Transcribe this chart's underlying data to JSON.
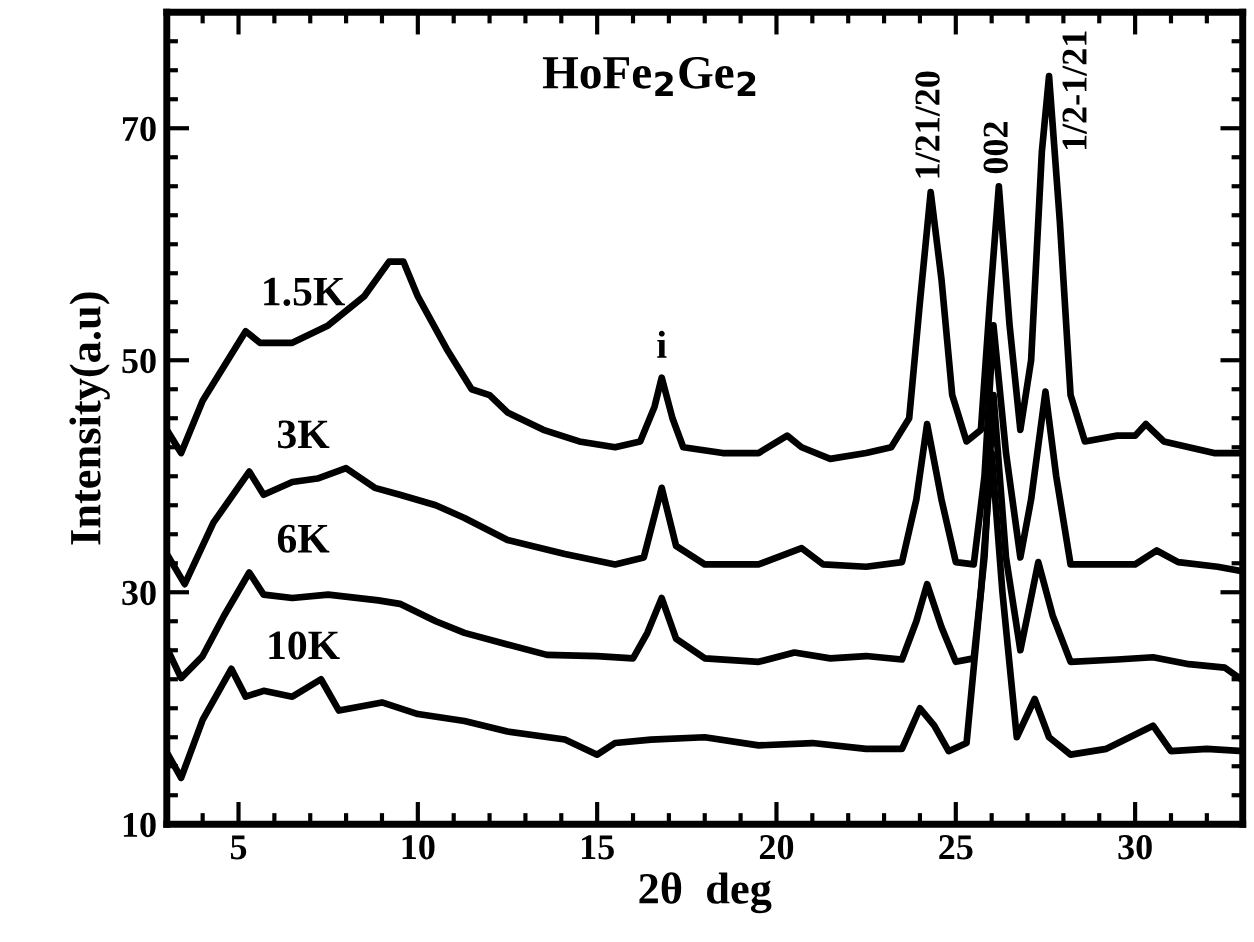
{
  "chart_data": {
    "type": "line",
    "title": "HoFe$_{2}$Ge$_{2}$",
    "xlabel": "2θ  deg",
    "ylabel": "Intensity(a.u)",
    "xlim": [
      3,
      33
    ],
    "ylim": [
      10,
      80
    ],
    "xticks": [
      5,
      10,
      15,
      20,
      25,
      30
    ],
    "yticks": [
      10,
      30,
      50,
      70
    ],
    "grid": false,
    "legend": false,
    "marker": "none",
    "line_style": "solid",
    "annotations": [
      {
        "text": "i",
        "x": 16.8,
        "y": 48.5
      },
      {
        "text": "1/21/20",
        "x": 24.3,
        "y": 64.5
      },
      {
        "text": "002",
        "x": 26.2,
        "y": 65
      },
      {
        "text": "1/2-1/21",
        "x": 27.6,
        "y": 74.5
      }
    ],
    "series": [
      {
        "name": "1.5K",
        "color": "#000000",
        "x": [
          3,
          3.4,
          4,
          4.6,
          5.2,
          5.6,
          6.5,
          7.5,
          8.5,
          9.2,
          9.6,
          10,
          10.8,
          11.5,
          12,
          12.5,
          13.5,
          14.5,
          15.5,
          16.2,
          16.6,
          16.8,
          17.1,
          17.4,
          18.5,
          19.5,
          20.3,
          20.7,
          21.5,
          22.5,
          23.2,
          23.7,
          24.0,
          24.3,
          24.6,
          24.9,
          25.3,
          25.7,
          25.95,
          26.2,
          26.5,
          26.8,
          27.1,
          27.4,
          27.6,
          27.9,
          28.2,
          28.6,
          29.5,
          30.0,
          30.3,
          30.8,
          31.5,
          32.2,
          33
        ],
        "values": [
          44,
          42,
          46.5,
          49.5,
          52.5,
          51.5,
          51.5,
          53,
          55.5,
          58.5,
          58.5,
          55.5,
          51,
          47.5,
          47,
          45.5,
          44,
          43,
          42.5,
          43,
          46,
          48.5,
          45,
          42.5,
          42,
          42,
          43.5,
          42.5,
          41.5,
          42,
          42.5,
          45,
          55,
          64.5,
          57,
          47,
          43,
          44,
          55,
          65,
          53,
          44,
          50,
          68,
          74.5,
          62,
          47,
          43,
          43.5,
          43.5,
          44.5,
          43,
          42.5,
          42,
          42
        ]
      },
      {
        "name": "3K",
        "color": "#000000",
        "x": [
          3,
          3.5,
          4.3,
          5.3,
          5.7,
          6.5,
          7.2,
          8,
          8.8,
          9.5,
          10.5,
          11.3,
          12.5,
          14.1,
          15.5,
          16.3,
          16.8,
          17.2,
          18,
          19.5,
          20.7,
          21.3,
          22.5,
          23.5,
          23.9,
          24.2,
          24.6,
          25,
          25.5,
          25.8,
          26.05,
          26.4,
          26.8,
          27.1,
          27.5,
          27.8,
          28.2,
          29,
          30,
          30.6,
          31.2,
          32.3,
          33
        ],
        "values": [
          33.3,
          30.7,
          36,
          40.4,
          38.4,
          39.5,
          39.8,
          40.7,
          39,
          38.4,
          37.5,
          36.4,
          34.5,
          33.3,
          32.4,
          33,
          39,
          34,
          32.4,
          32.4,
          33.8,
          32.4,
          32.2,
          32.6,
          38,
          44.5,
          38,
          32.6,
          32.4,
          40,
          53,
          42,
          33,
          38,
          47.3,
          40,
          32.4,
          32.4,
          32.4,
          33.6,
          32.6,
          32.2,
          31.8
        ]
      },
      {
        "name": "6K",
        "color": "#000000",
        "x": [
          3,
          3.4,
          4,
          4.6,
          5.3,
          5.7,
          6.5,
          7.5,
          8.9,
          9.5,
          10.5,
          11.3,
          12.5,
          13.6,
          15,
          16,
          16.4,
          16.8,
          17.2,
          18,
          19.5,
          20.5,
          21.5,
          22.5,
          23.5,
          23.9,
          24.2,
          24.6,
          25,
          25.5,
          25.8,
          26.05,
          26.4,
          26.8,
          27.0,
          27.3,
          27.7,
          28.2,
          29.5,
          30.5,
          31.5,
          32.5,
          33
        ],
        "values": [
          25.2,
          22.6,
          24.5,
          28,
          31.7,
          29.8,
          29.5,
          29.8,
          29.3,
          29,
          27.5,
          26.5,
          25.5,
          24.6,
          24.5,
          24.3,
          26.5,
          29.5,
          26,
          24.3,
          24,
          24.8,
          24.3,
          24.5,
          24.2,
          27.5,
          30.7,
          27,
          24,
          24.3,
          33,
          47,
          33,
          25,
          28,
          32.6,
          28,
          24,
          24.2,
          24.4,
          23.8,
          23.5,
          22.4
        ]
      },
      {
        "name": "10K",
        "color": "#000000",
        "x": [
          3,
          3.4,
          4,
          4.8,
          5.2,
          5.7,
          6.5,
          7.3,
          7.8,
          9,
          10,
          11.3,
          12.5,
          14.1,
          15,
          15.5,
          16.5,
          18,
          19.5,
          21,
          22.5,
          23.5,
          24,
          24.4,
          24.8,
          25.3,
          25.7,
          26.0,
          26.3,
          26.7,
          27.2,
          27.6,
          28.2,
          29.2,
          30.5,
          31,
          32,
          33
        ],
        "values": [
          16.2,
          14,
          19,
          23.4,
          21,
          21.5,
          21,
          22.5,
          19.8,
          20.5,
          19.5,
          18.9,
          18,
          17.3,
          16,
          17,
          17.3,
          17.5,
          16.8,
          17,
          16.5,
          16.5,
          20,
          18.5,
          16.3,
          17,
          30,
          42,
          30,
          17.5,
          20.8,
          17.5,
          16,
          16.5,
          18.5,
          16.3,
          16.5,
          16.3
        ]
      }
    ]
  }
}
